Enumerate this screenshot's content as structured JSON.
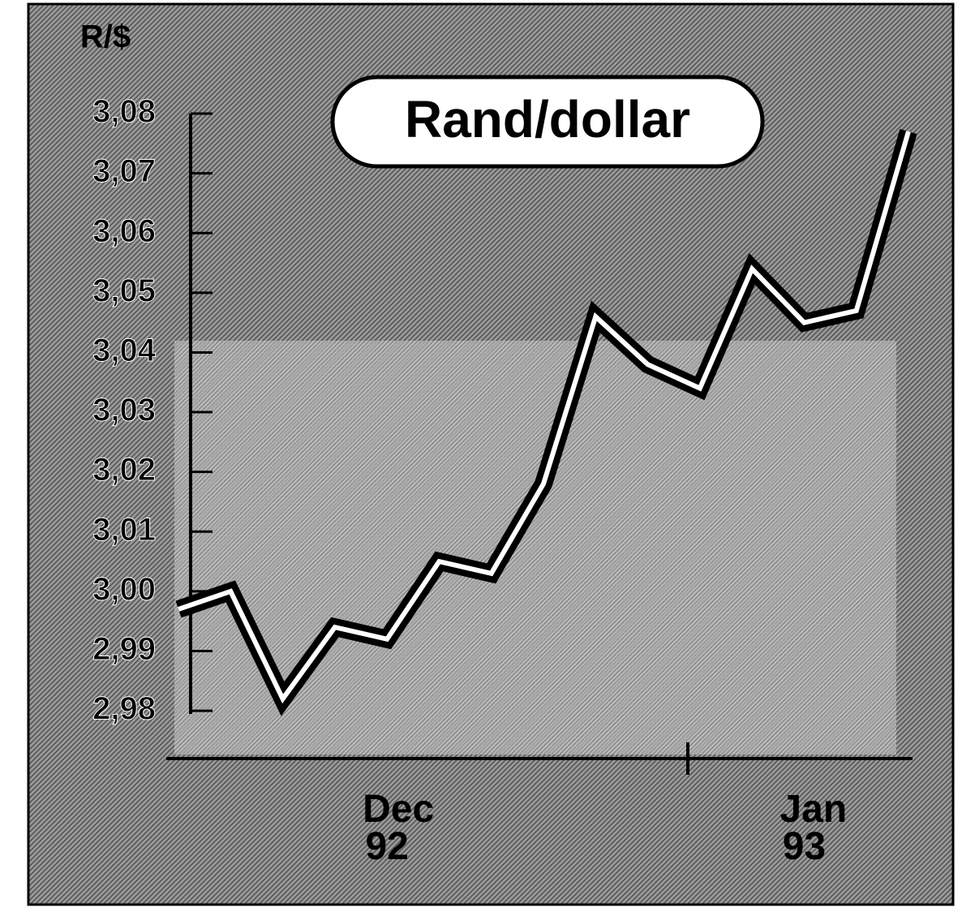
{
  "chart_data": {
    "type": "line",
    "title": "Rand/dollar",
    "y_label": "R/$",
    "categories": [
      null,
      null,
      null,
      null,
      "Dec 92",
      null,
      null,
      null,
      null,
      null,
      null,
      null,
      "Jan 93",
      null,
      null
    ],
    "series": [
      {
        "color": "#000000",
        "values": [
          2.997,
          3.0,
          2.982,
          2.994,
          2.992,
          3.005,
          3.003,
          3.018,
          3.046,
          3.038,
          3.034,
          3.054,
          3.045,
          3.047,
          3.077
        ]
      }
    ],
    "ylim": [
      2.972,
      3.08
    ],
    "yticks": [
      {
        "value": 2.98,
        "label": "2,98"
      },
      {
        "value": 2.99,
        "label": "2,99"
      },
      {
        "value": 3.0,
        "label": "3,00"
      },
      {
        "value": 3.01,
        "label": "3,01"
      },
      {
        "value": 3.02,
        "label": "3,02"
      },
      {
        "value": 3.03,
        "label": "3,03"
      },
      {
        "value": 3.04,
        "label": "3,04"
      },
      {
        "value": 3.05,
        "label": "3,05"
      },
      {
        "value": 3.06,
        "label": "3,06"
      },
      {
        "value": 3.07,
        "label": "3,07"
      },
      {
        "value": 3.08,
        "label": "3,08"
      }
    ]
  }
}
